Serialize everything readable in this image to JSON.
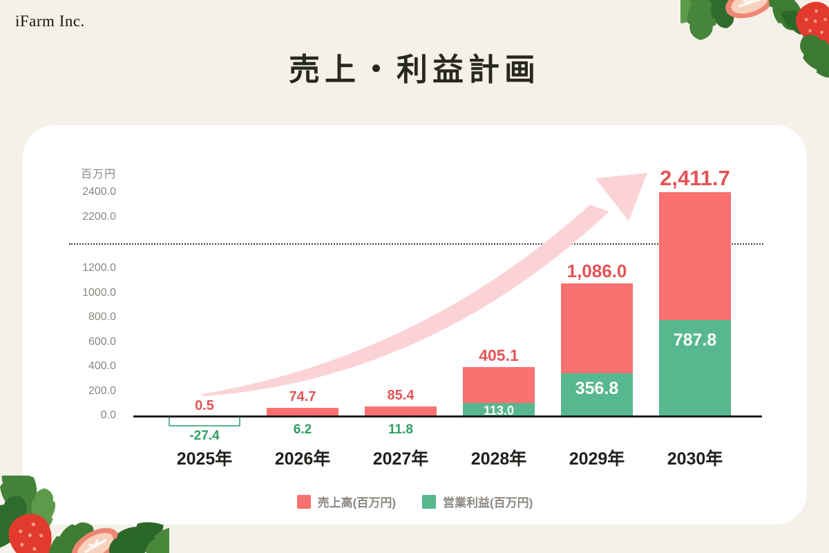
{
  "brand": "iFarm Inc.",
  "title": "売上・利益計画",
  "colors": {
    "background": "#f4f1e9",
    "card": "#ffffff",
    "sales_bar": "#fb7070",
    "profit_bar": "#57b78f",
    "sales_label": "#e35356",
    "profit_label": "#2f9e63",
    "arrow": "#fbd3d6",
    "axis": "#1d1d1a",
    "tick_text": "#8b8680"
  },
  "chart_data": {
    "type": "bar",
    "title": "売上・利益計画",
    "unit_label": "百万円",
    "categories": [
      "2025年",
      "2026年",
      "2027年",
      "2028年",
      "2029年",
      "2030年"
    ],
    "series": [
      {
        "name": "売上高(百万円)",
        "color": "#fb7070",
        "label_color": "#e35356",
        "values": [
          0.5,
          74.7,
          85.4,
          405.1,
          1086.0,
          2411.7
        ],
        "labels": [
          "0.5",
          "74.7",
          "85.4",
          "405.1",
          "1,086.0",
          "2,411.7"
        ]
      },
      {
        "name": "営業利益(百万円)",
        "color": "#57b78f",
        "label_color": "#2f9e63",
        "values": [
          -27.4,
          6.2,
          11.8,
          113.0,
          356.8,
          787.8
        ],
        "labels": [
          "-27.4",
          "6.2",
          "11.8",
          "113.0",
          "356.8",
          "787.8"
        ]
      }
    ],
    "y_axis": {
      "unit": "百万円",
      "ticks_lower": {
        "values": [
          0,
          200,
          400,
          600,
          800,
          1000,
          1200
        ],
        "labels": [
          "0.0",
          "200.0",
          "400.0",
          "600.0",
          "800.0",
          "1000.0",
          "1200.0"
        ]
      },
      "ticks_upper": {
        "values": [
          2200,
          2400
        ],
        "labels": [
          "2200.0",
          "2400.0"
        ]
      },
      "axis_break_between": [
        1200,
        2200
      ]
    },
    "annotations": {
      "growth_arrow": true
    },
    "legend_position": "bottom-center",
    "grid": false
  }
}
